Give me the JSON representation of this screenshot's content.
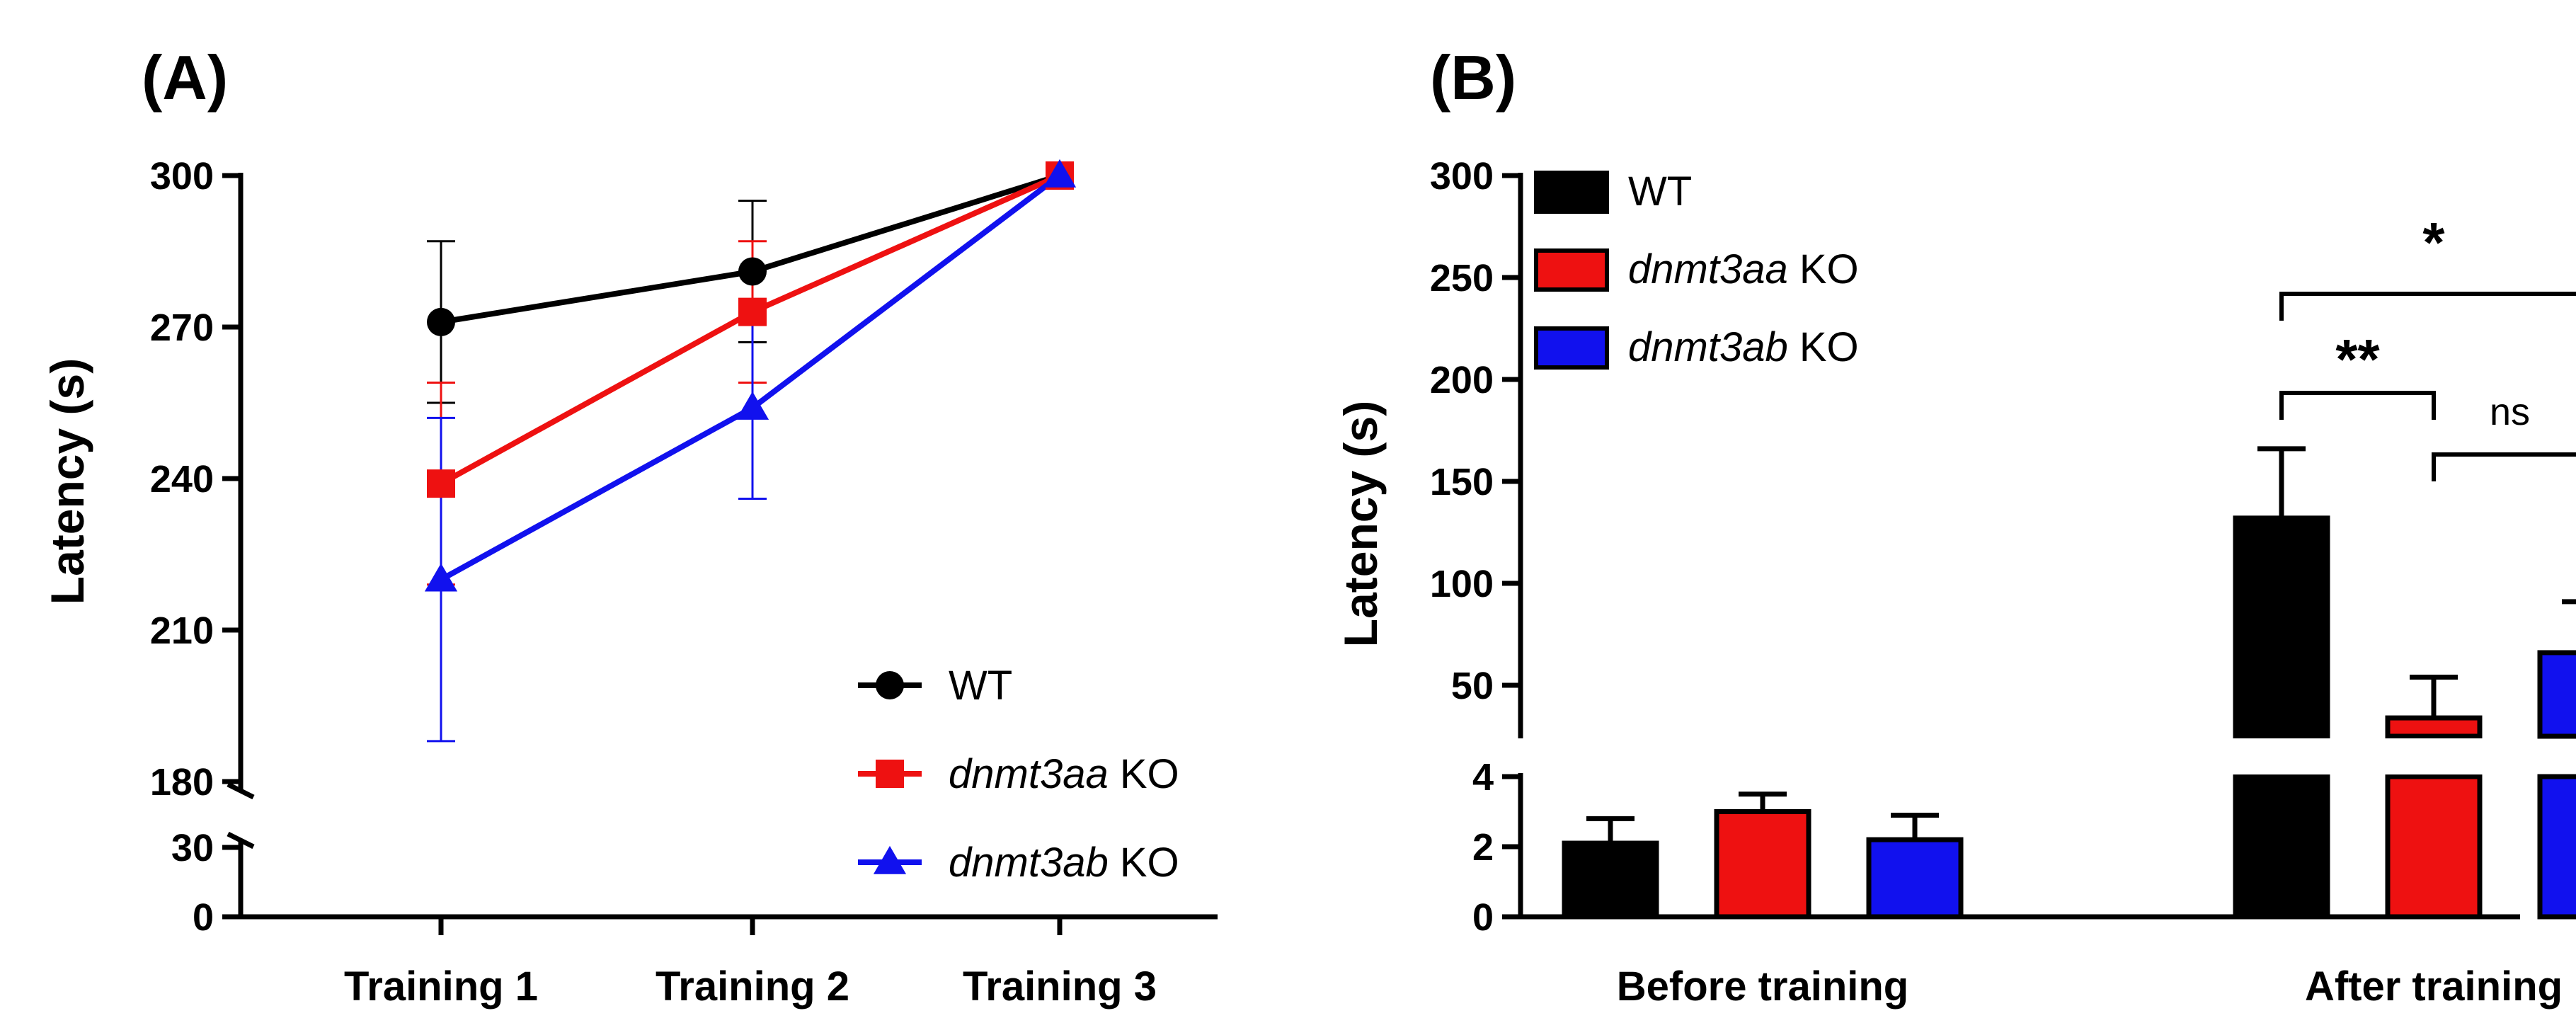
{
  "chart_data": [
    {
      "panel": "(A)",
      "type": "line",
      "ylabel": "Latency  (s)",
      "y_ticks_upper": [
        180,
        210,
        240,
        270,
        300
      ],
      "y_ticks_lower": [
        0,
        30
      ],
      "ylim_upper": [
        180,
        300
      ],
      "ylim_lower": [
        0,
        30
      ],
      "categories": [
        "Training 1",
        "Training 2",
        "Training 3"
      ],
      "series": [
        {
          "name": "WT",
          "name_italic": "",
          "name_suffix": "WT",
          "color": "#000000",
          "marker": "circle",
          "values": [
            271,
            281,
            300
          ],
          "err": [
            16,
            14,
            0
          ]
        },
        {
          "name": "dnmt3aa KO",
          "name_italic": "dnmt3aa",
          "name_suffix": " KO",
          "color": "#ee1111",
          "marker": "square",
          "values": [
            239,
            273,
            300
          ],
          "err": [
            20,
            14,
            0
          ]
        },
        {
          "name": "dnmt3ab KO",
          "name_italic": "dnmt3ab",
          "name_suffix": " KO",
          "color": "#1111ee",
          "marker": "triangle",
          "values": [
            220,
            254,
            300
          ],
          "err": [
            32,
            18,
            0
          ]
        }
      ],
      "legend_position": "bottom-right"
    },
    {
      "panel": "(B)",
      "type": "bar",
      "ylabel": "Latency  (s)",
      "y_ticks_upper": [
        50,
        100,
        150,
        200,
        250,
        300
      ],
      "y_ticks_lower": [
        0,
        2,
        4
      ],
      "ylim_upper": [
        25,
        300
      ],
      "ylim_lower": [
        0,
        4
      ],
      "categories": [
        "Before training",
        "After training"
      ],
      "series": [
        {
          "name": "WT",
          "name_italic": "",
          "name_suffix": "WT",
          "color": "#000000",
          "values": [
            2.1,
            132
          ],
          "err": [
            0.7,
            34
          ]
        },
        {
          "name": "dnmt3aa KO",
          "name_italic": "dnmt3aa",
          "name_suffix": " KO",
          "color": "#ee1111",
          "values": [
            3.0,
            34
          ],
          "err": [
            0.5,
            20
          ]
        },
        {
          "name": "dnmt3ab KO",
          "name_italic": "dnmt3ab",
          "name_suffix": " KO",
          "color": "#1111ee",
          "values": [
            2.2,
            66
          ],
          "err": [
            0.7,
            25
          ]
        }
      ],
      "legend_position": "top-left",
      "annotations": [
        {
          "label": "*",
          "from": "WT",
          "to": "dnmt3ab KO",
          "group": "After training"
        },
        {
          "label": "**",
          "from": "WT",
          "to": "dnmt3aa KO",
          "group": "After training"
        },
        {
          "label": "ns",
          "from": "dnmt3aa KO",
          "to": "dnmt3ab KO",
          "group": "After training"
        }
      ]
    }
  ]
}
